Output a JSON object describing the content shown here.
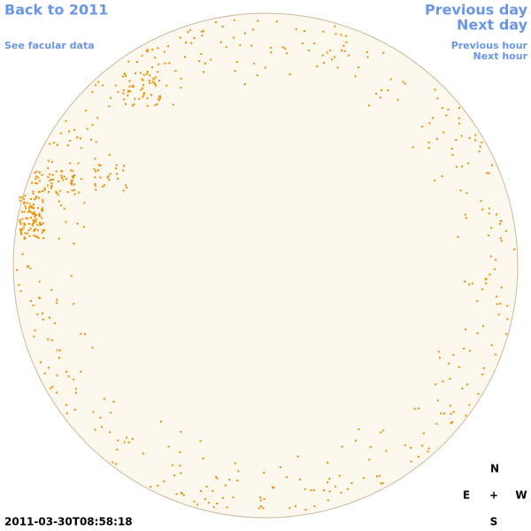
{
  "navigation": {
    "back": "Back to 2011",
    "facular": "See facular data",
    "previous_day": "Previous day",
    "next_day": "Next day",
    "previous_hour": "Previous hour",
    "next_hour": "Next hour"
  },
  "timestamp": "2011-03-30T08:58:18",
  "compass": {
    "north": "N",
    "east": "E",
    "center": "+",
    "west": "W",
    "south": "S"
  }
}
